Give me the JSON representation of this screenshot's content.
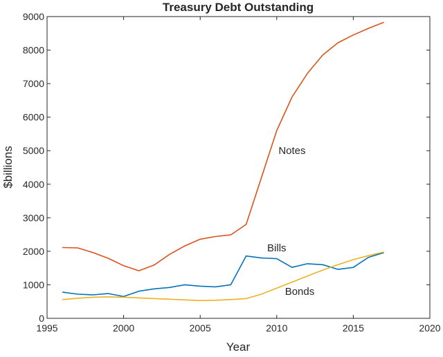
{
  "chart_data": {
    "type": "line",
    "title": "Treasury Debt Outstanding",
    "xlabel": "Year",
    "ylabel": "$billions",
    "xlim": [
      1995,
      2020
    ],
    "ylim": [
      0,
      9000
    ],
    "xticks": [
      1995,
      2000,
      2005,
      2010,
      2015,
      2020
    ],
    "yticks": [
      0,
      1000,
      2000,
      3000,
      4000,
      5000,
      6000,
      7000,
      8000,
      9000
    ],
    "grid": false,
    "legend": "none",
    "series": [
      {
        "name": "Notes",
        "color": "#d95319",
        "x": [
          1996,
          1997,
          1998,
          1999,
          2000,
          2001,
          2002,
          2003,
          2004,
          2005,
          2006,
          2007,
          2008,
          2009,
          2010,
          2011,
          2012,
          2013,
          2014,
          2015,
          2016,
          2017
        ],
        "y": [
          2110,
          2100,
          1960,
          1790,
          1570,
          1420,
          1590,
          1910,
          2160,
          2360,
          2440,
          2490,
          2800,
          4200,
          5600,
          6600,
          7300,
          7850,
          8220,
          8450,
          8650,
          8830
        ]
      },
      {
        "name": "Bills",
        "color": "#0072bd",
        "x": [
          1996,
          1997,
          1998,
          1999,
          2000,
          2001,
          2002,
          2003,
          2004,
          2005,
          2006,
          2007,
          2008,
          2009,
          2010,
          2011,
          2012,
          2013,
          2014,
          2015,
          2016,
          2017
        ],
        "y": [
          780,
          720,
          700,
          740,
          650,
          810,
          880,
          920,
          1000,
          960,
          940,
          1000,
          1860,
          1800,
          1780,
          1520,
          1630,
          1600,
          1460,
          1520,
          1820,
          1960
        ]
      },
      {
        "name": "Bonds",
        "color": "#edb120",
        "x": [
          1996,
          1997,
          1998,
          1999,
          2000,
          2001,
          2002,
          2003,
          2004,
          2005,
          2006,
          2007,
          2008,
          2009,
          2010,
          2011,
          2012,
          2013,
          2014,
          2015,
          2016,
          2017
        ],
        "y": [
          560,
          600,
          630,
          640,
          630,
          610,
          590,
          570,
          550,
          530,
          540,
          560,
          590,
          720,
          900,
          1080,
          1260,
          1440,
          1600,
          1750,
          1870,
          1980
        ]
      }
    ],
    "annotations": [
      {
        "text": "Notes",
        "x": 2011,
        "y": 5000
      },
      {
        "text": "Bills",
        "x": 2010,
        "y": 2100
      },
      {
        "text": "Bonds",
        "x": 2011.5,
        "y": 800
      }
    ]
  }
}
